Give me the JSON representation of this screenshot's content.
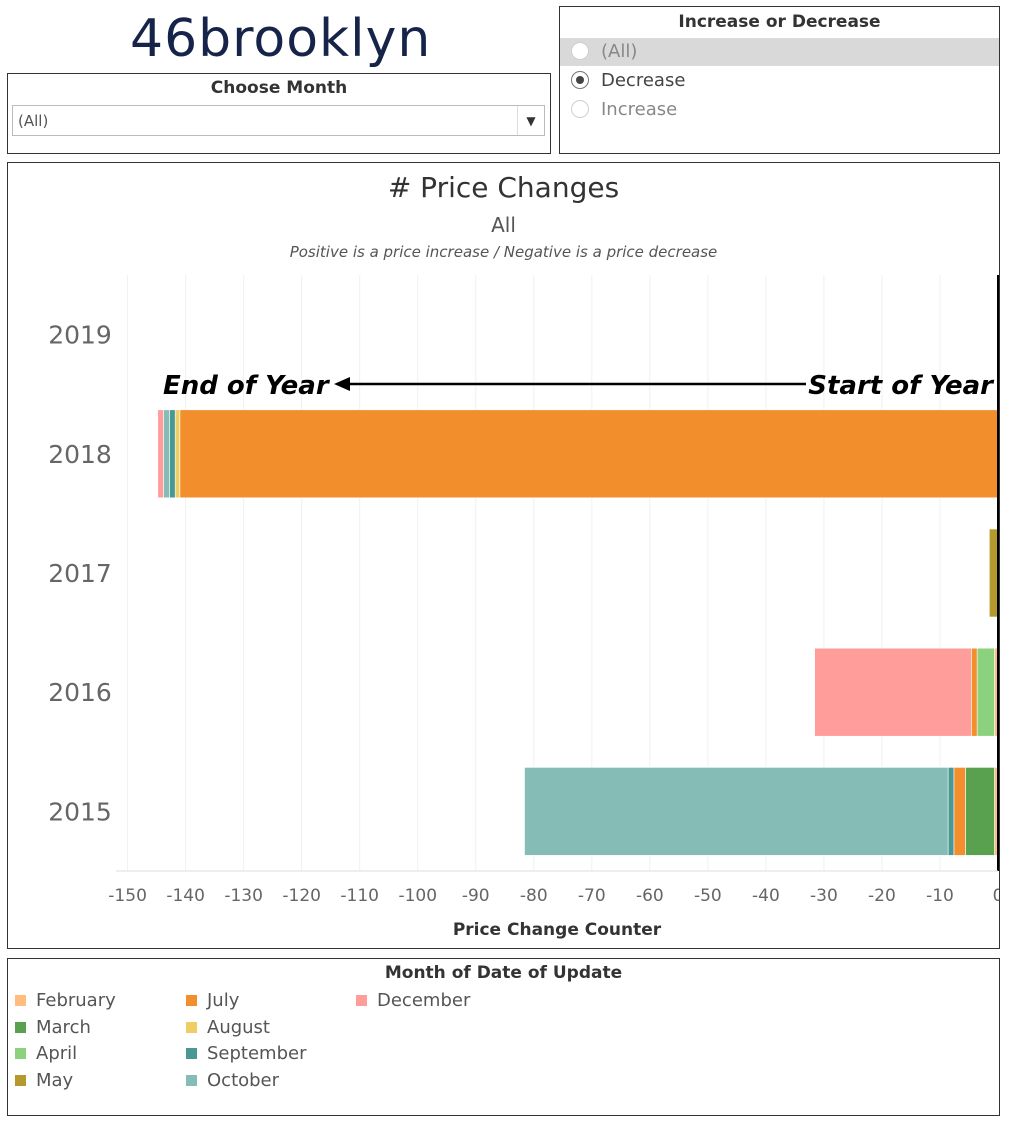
{
  "logo": {
    "text": "46brooklyn"
  },
  "month_filter": {
    "title": "Choose Month",
    "selected": "(All)"
  },
  "increase_filter": {
    "title": "Increase or Decrease",
    "options": [
      {
        "label": "(All)",
        "checked": false
      },
      {
        "label": "Decrease",
        "checked": true
      },
      {
        "label": "Increase",
        "checked": false
      }
    ]
  },
  "legend": {
    "title": "Month of Date of Update",
    "items": [
      {
        "label": "February",
        "color": "#ffbe7d"
      },
      {
        "label": "March",
        "color": "#59a14f"
      },
      {
        "label": "April",
        "color": "#8cd17d"
      },
      {
        "label": "May",
        "color": "#b6992d"
      },
      {
        "label": "July",
        "color": "#f28e2b"
      },
      {
        "label": "August",
        "color": "#f1ce63"
      },
      {
        "label": "September",
        "color": "#499894"
      },
      {
        "label": "October",
        "color": "#86bcb6"
      },
      {
        "label": "December",
        "color": "#ff9d9a"
      }
    ]
  },
  "chart_data": {
    "type": "bar",
    "orientation": "horizontal",
    "stacked": true,
    "title": "# Price Changes",
    "subtitle": "All",
    "note": "Positive is a price increase / Negative is a price decrease",
    "xlabel": "Price Change Counter",
    "ylabel": "",
    "xlim": [
      -152,
      0
    ],
    "xticks": [
      -150,
      -140,
      -130,
      -120,
      -110,
      -100,
      -90,
      -80,
      -70,
      -60,
      -50,
      -40,
      -30,
      -20,
      -10,
      0
    ],
    "categories": [
      "2019",
      "2018",
      "2017",
      "2016",
      "2015"
    ],
    "annotations": {
      "left": "End of Year",
      "right": "Start of Year"
    },
    "series": [
      {
        "name": "February",
        "color": "#ffbe7d",
        "values": [
          0,
          0,
          0,
          -0.6,
          -0.6
        ]
      },
      {
        "name": "March",
        "color": "#59a14f",
        "values": [
          0,
          0,
          0,
          0,
          -5
        ]
      },
      {
        "name": "April",
        "color": "#8cd17d",
        "values": [
          0,
          0,
          0,
          -3,
          0
        ]
      },
      {
        "name": "May",
        "color": "#b6992d",
        "values": [
          0,
          0,
          -1.5,
          0,
          0
        ]
      },
      {
        "name": "July",
        "color": "#f28e2b",
        "values": [
          0,
          -141,
          0,
          -1,
          -2
        ]
      },
      {
        "name": "August",
        "color": "#f1ce63",
        "values": [
          0,
          -0.8,
          0,
          0,
          0
        ]
      },
      {
        "name": "September",
        "color": "#499894",
        "values": [
          0,
          -1,
          0,
          0,
          -1
        ]
      },
      {
        "name": "October",
        "color": "#86bcb6",
        "values": [
          0,
          -1,
          0,
          0,
          -73
        ]
      },
      {
        "name": "December",
        "color": "#ff9d9a",
        "values": [
          0,
          -1,
          0,
          -27,
          0
        ]
      }
    ]
  }
}
